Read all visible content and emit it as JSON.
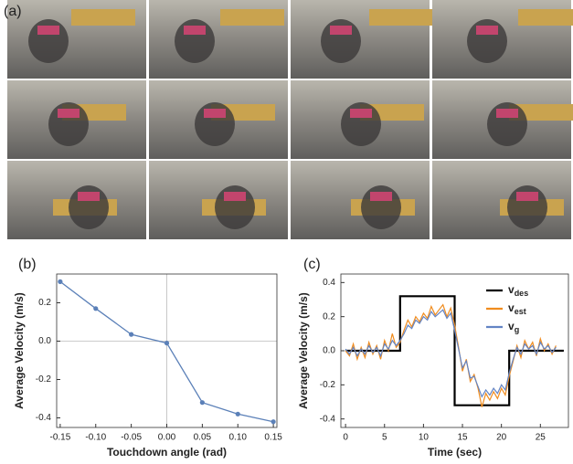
{
  "figure": {
    "photo_panel_label": "(a)"
  },
  "chart_data": [
    {
      "type": "line",
      "panel_label": "(b)",
      "xlabel": "Touchdown angle (rad)",
      "ylabel": "Average Velocity (m/s)",
      "x": [
        -0.15,
        -0.1,
        -0.05,
        0,
        0.05,
        0.1,
        0.15
      ],
      "series": [
        {
          "color": "#5b80b8",
          "values": [
            0.31,
            0.17,
            0.035,
            -0.01,
            -0.32,
            -0.38,
            -0.42
          ]
        }
      ],
      "markers": true,
      "zero_lines": true,
      "xlim": [
        -0.155,
        0.155
      ],
      "ylim": [
        -0.45,
        0.35
      ],
      "xticks": [
        -0.15,
        {
          "value": -0.1,
          "label": "-0.10"
        },
        -0.05,
        {
          "value": 0,
          "label": "0.00"
        },
        0.05,
        {
          "value": 0.1,
          "label": "0.10"
        },
        0.15
      ],
      "yticks": [
        -0.4,
        -0.2,
        {
          "value": 0,
          "label": "0.0"
        },
        0.2
      ]
    },
    {
      "type": "line",
      "panel_label": "(c)",
      "xlabel": "Time (sec)",
      "ylabel": "Average Velocity (m/s)",
      "xlim": [
        -0.6,
        28.6
      ],
      "ylim": [
        -0.45,
        0.45
      ],
      "xticks": [
        0,
        5,
        10,
        15,
        20,
        25
      ],
      "yticks": [
        -0.4,
        -0.2,
        {
          "value": 0,
          "label": "0.0"
        },
        0.2,
        0.4
      ],
      "legend": "upper right",
      "series": [
        {
          "name": "v_des",
          "color": "#000000",
          "width": 2.2,
          "x": [
            0,
            7,
            7,
            14,
            14,
            21,
            21,
            28
          ],
          "values": [
            0,
            0,
            0.32,
            0.32,
            -0.32,
            -0.32,
            0,
            0
          ]
        },
        {
          "name": "v_est",
          "color": "#f08c1e",
          "width": 1.2,
          "x": [
            0,
            0.5,
            1,
            1.5,
            2,
            2.5,
            3,
            3.5,
            4,
            4.5,
            5,
            5.5,
            6,
            6.5,
            7,
            7.5,
            8,
            8.5,
            9,
            9.5,
            10,
            10.5,
            11,
            11.5,
            12,
            12.5,
            13,
            13.5,
            14,
            14.5,
            15,
            15.5,
            16,
            16.5,
            17,
            17.5,
            18,
            18.5,
            19,
            19.5,
            20,
            20.5,
            21,
            21.5,
            22,
            22.5,
            23,
            23.5,
            24,
            24.5,
            25,
            25.5,
            26,
            26.5,
            27
          ],
          "values": [
            0,
            -0.03,
            0.04,
            -0.05,
            0.02,
            -0.04,
            0.05,
            -0.02,
            0.03,
            -0.05,
            0.06,
            0,
            0.1,
            0.02,
            0.05,
            0.12,
            0.18,
            0.14,
            0.2,
            0.17,
            0.22,
            0.19,
            0.26,
            0.21,
            0.24,
            0.27,
            0.2,
            0.25,
            0.15,
            0.02,
            -0.12,
            -0.05,
            -0.18,
            -0.14,
            -0.22,
            -0.33,
            -0.25,
            -0.29,
            -0.24,
            -0.28,
            -0.22,
            -0.26,
            -0.15,
            -0.06,
            0.03,
            -0.04,
            0.06,
            0.01,
            0.05,
            -0.03,
            0.07,
            0,
            0.04,
            -0.02,
            0.03
          ]
        },
        {
          "name": "v_g",
          "color": "#6384c4",
          "width": 1.2,
          "x": [
            0,
            0.5,
            1,
            1.5,
            2,
            2.5,
            3,
            3.5,
            4,
            4.5,
            5,
            5.5,
            6,
            6.5,
            7,
            7.5,
            8,
            8.5,
            9,
            9.5,
            10,
            10.5,
            11,
            11.5,
            12,
            12.5,
            13,
            13.5,
            14,
            14.5,
            15,
            15.5,
            16,
            16.5,
            17,
            17.5,
            18,
            18.5,
            19,
            19.5,
            20,
            20.5,
            21,
            21.5,
            22,
            22.5,
            23,
            23.5,
            24,
            24.5,
            25,
            25.5,
            26,
            26.5,
            27
          ],
          "values": [
            0.01,
            -0.02,
            0.02,
            -0.03,
            0.01,
            -0.02,
            0.03,
            -0.01,
            0.02,
            -0.03,
            0.04,
            0.01,
            0.06,
            0.03,
            0.06,
            0.1,
            0.15,
            0.13,
            0.18,
            0.16,
            0.2,
            0.18,
            0.23,
            0.2,
            0.22,
            0.24,
            0.19,
            0.22,
            0.12,
            0.01,
            -0.1,
            -0.06,
            -0.16,
            -0.15,
            -0.21,
            -0.27,
            -0.23,
            -0.26,
            -0.22,
            -0.25,
            -0.2,
            -0.23,
            -0.13,
            -0.05,
            0.02,
            -0.02,
            0.04,
            0.01,
            0.03,
            -0.02,
            0.05,
            0.01,
            0.03,
            -0.01,
            0.02
          ]
        }
      ]
    }
  ]
}
